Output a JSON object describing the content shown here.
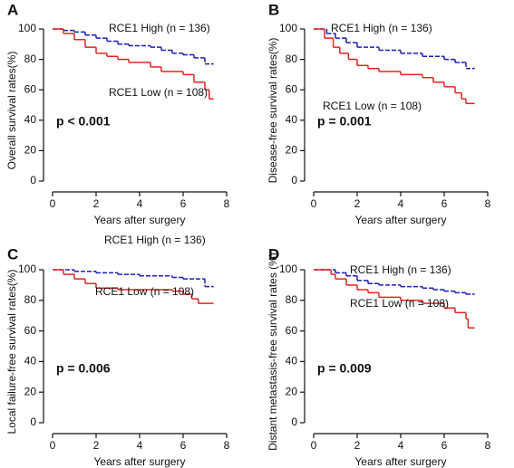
{
  "chart_data": [
    {
      "type": "line",
      "panel_label": "A",
      "y_label": "Overall survival rates(%)",
      "x_label": "Years after surgery",
      "annotation": "p < 0.001",
      "xlim": [
        0,
        8
      ],
      "xticks": [
        0,
        2,
        4,
        6,
        8
      ],
      "ylim": [
        0,
        100
      ],
      "yticks": [
        0,
        20,
        40,
        60,
        80,
        100
      ],
      "series": [
        {
          "name": "RCE1 High (n = 136)",
          "color": "#1f1fbf",
          "dashed": true,
          "x": [
            0,
            0.5,
            1,
            1.5,
            2,
            2.5,
            3,
            3.5,
            4.5,
            5,
            5.5,
            6,
            6.5,
            7,
            7.4
          ],
          "values": [
            100,
            99,
            98,
            96,
            94,
            92,
            90,
            89,
            88,
            86,
            84,
            83,
            81,
            77,
            77
          ]
        },
        {
          "name": "RCE1 Low (n = 108)",
          "color": "#e8231f",
          "dashed": false,
          "x": [
            0,
            0.5,
            1,
            1.5,
            2,
            2.5,
            3,
            3.5,
            4.5,
            5,
            6,
            6.5,
            7,
            7.2,
            7.4
          ],
          "values": [
            100,
            97,
            93,
            88,
            84,
            82,
            80,
            78,
            75,
            72,
            70,
            65,
            60,
            54,
            54
          ]
        }
      ]
    },
    {
      "type": "line",
      "panel_label": "B",
      "y_label": "Disease-free survival rates(%)",
      "x_label": "Years after surgery",
      "annotation": "p = 0.001",
      "xlim": [
        0,
        8
      ],
      "xticks": [
        0,
        2,
        4,
        6,
        8
      ],
      "ylim": [
        0,
        100
      ],
      "yticks": [
        0,
        20,
        40,
        60,
        80,
        100
      ],
      "series": [
        {
          "name": "RCE1 High (n = 136)",
          "color": "#1f1fbf",
          "dashed": true,
          "x": [
            0,
            0.6,
            1,
            1.5,
            2,
            3,
            4,
            5,
            6,
            6.5,
            7,
            7.4
          ],
          "values": [
            100,
            97,
            94,
            91,
            88,
            86,
            84,
            82,
            80,
            78,
            74,
            74
          ]
        },
        {
          "name": "RCE1 Low (n = 108)",
          "color": "#e8231f",
          "dashed": false,
          "x": [
            0,
            0.5,
            0.9,
            1.2,
            1.6,
            2,
            2.5,
            3,
            4,
            5,
            5.5,
            6,
            6.5,
            6.8,
            7,
            7.4
          ],
          "values": [
            100,
            94,
            88,
            84,
            80,
            76,
            74,
            72,
            70,
            68,
            65,
            62,
            58,
            54,
            51,
            51
          ]
        }
      ]
    },
    {
      "type": "line",
      "panel_label": "C",
      "y_label": "Local failure-free survival rates(%)",
      "x_label": "Years after surgery",
      "annotation": "p = 0.006",
      "xlim": [
        0,
        8
      ],
      "xticks": [
        0,
        2,
        4,
        6,
        8
      ],
      "ylim": [
        0,
        100
      ],
      "yticks": [
        0,
        20,
        40,
        60,
        80,
        100
      ],
      "series": [
        {
          "name": "RCE1 High (n = 136)",
          "color": "#1f1fbf",
          "dashed": true,
          "x": [
            0,
            1,
            2,
            3,
            4,
            5.5,
            6,
            7,
            7.4
          ],
          "values": [
            100,
            99,
            98,
            97,
            96,
            95,
            94,
            89,
            89
          ]
        },
        {
          "name": "RCE1 Low (n = 108)",
          "color": "#e8231f",
          "dashed": false,
          "x": [
            0,
            0.5,
            1,
            1.5,
            2,
            3,
            5.5,
            6,
            6.4,
            6.7,
            7.4
          ],
          "values": [
            100,
            97,
            94,
            91,
            88,
            87,
            86,
            84,
            81,
            78,
            78
          ]
        }
      ]
    },
    {
      "type": "line",
      "panel_label": "D",
      "y_label": "Distant metastasis-free survival rates (%)",
      "x_label": "Years after surgery",
      "annotation": "p = 0.009",
      "xlim": [
        0,
        8
      ],
      "xticks": [
        0,
        2,
        4,
        6,
        8
      ],
      "ylim": [
        0,
        100
      ],
      "yticks": [
        0,
        20,
        40,
        60,
        80,
        100
      ],
      "series": [
        {
          "name": "RCE1 High (n = 136)",
          "color": "#1f1fbf",
          "dashed": true,
          "x": [
            0,
            1,
            1.5,
            2,
            2.5,
            3,
            4,
            5,
            5.5,
            6,
            6.5,
            7,
            7.4
          ],
          "values": [
            100,
            98,
            96,
            93,
            91,
            90,
            89,
            88,
            87,
            86,
            85,
            84,
            84
          ]
        },
        {
          "name": "RCE1 Low (n = 108)",
          "color": "#e8231f",
          "dashed": false,
          "x": [
            0,
            0.8,
            1,
            1.5,
            2,
            2.5,
            3,
            4,
            5,
            6,
            6.5,
            7,
            7.1,
            7.4
          ],
          "values": [
            100,
            97,
            94,
            90,
            87,
            85,
            82,
            80,
            78,
            75,
            72,
            68,
            62,
            62
          ]
        }
      ]
    }
  ]
}
